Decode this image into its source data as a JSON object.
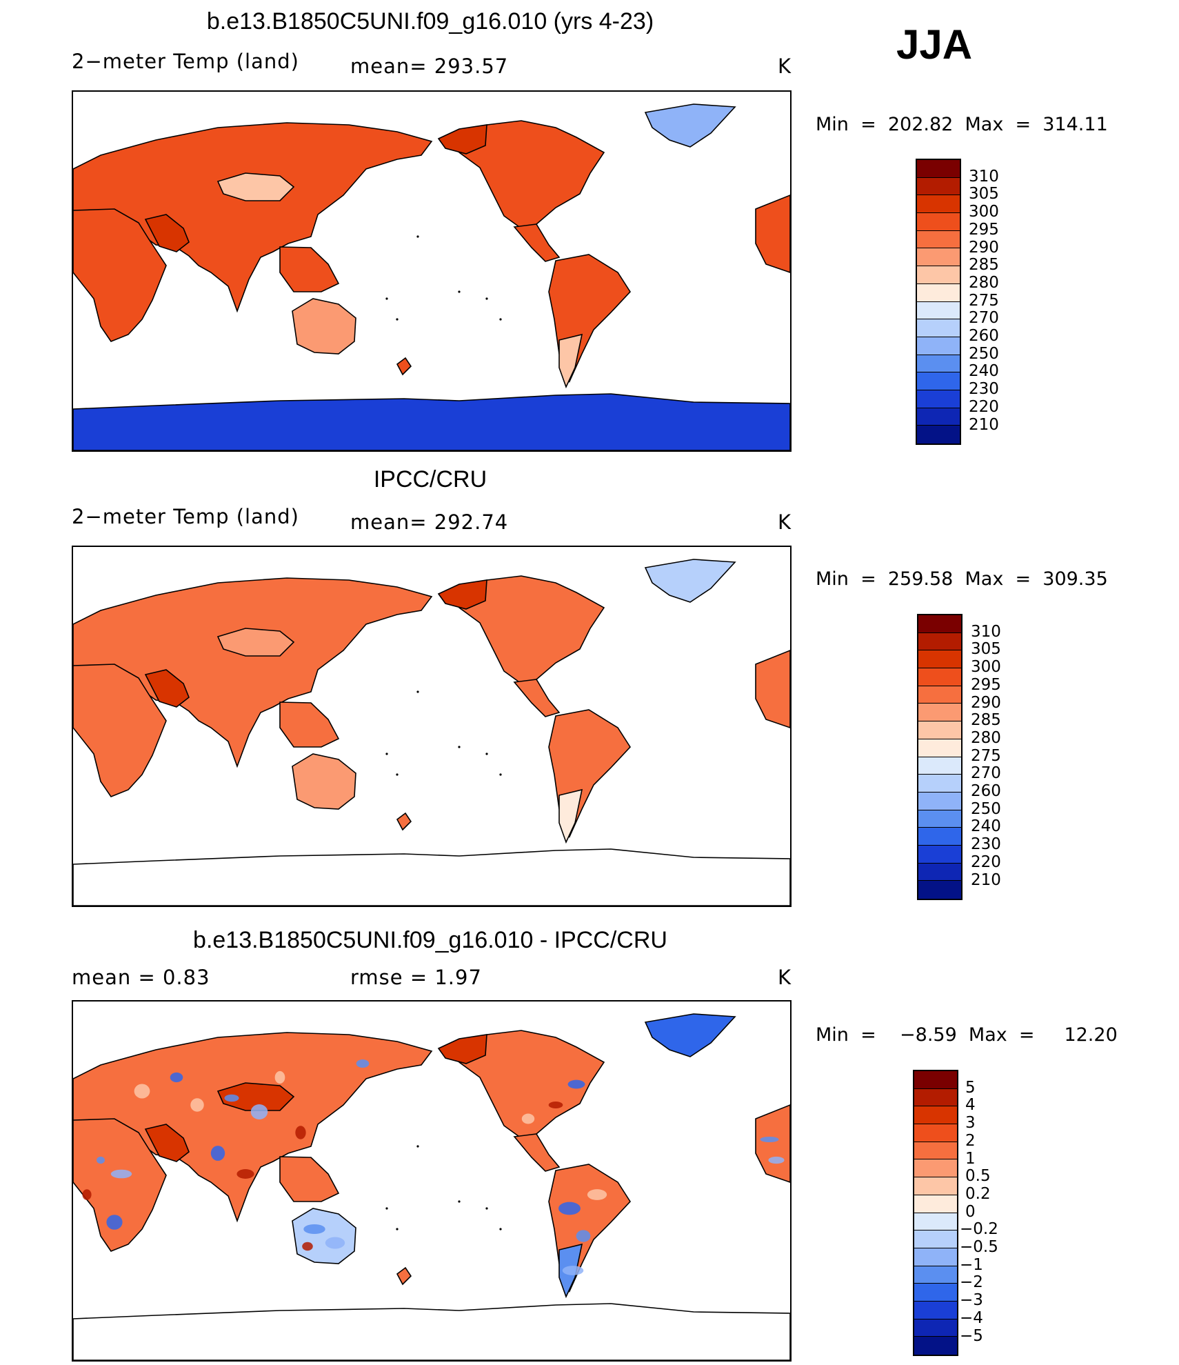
{
  "season": "JJA",
  "panels": [
    {
      "title": "b.e13.B1850C5UNI.f09_g16.010 (yrs 4-23)",
      "left_label": "2−meter Temp (land)",
      "center_label": "mean= 293.57",
      "unit": "K",
      "minmax": "Min  =  202.82  Max  =  314.11",
      "colorbar": {
        "labels": [
          "310",
          "305",
          "300",
          "295",
          "290",
          "285",
          "280",
          "275",
          "270",
          "260",
          "250",
          "240",
          "230",
          "220",
          "210"
        ],
        "colors": [
          "#7a0000",
          "#b31c00",
          "#d83400",
          "#ee4f1c",
          "#f66f3f",
          "#fb9a72",
          "#fdc6a7",
          "#feebdc",
          "#dbe9fb",
          "#b6d0fb",
          "#8fb3f8",
          "#5b8ff0",
          "#2f66ea",
          "#1a3fd6",
          "#0e26b4",
          "#031287"
        ]
      },
      "map_style": "model"
    },
    {
      "title": "IPCC/CRU",
      "left_label": "2−meter Temp (land)",
      "center_label": "mean= 292.74",
      "unit": "K",
      "minmax": "Min  =  259.58  Max  =  309.35",
      "colorbar": {
        "labels": [
          "310",
          "305",
          "300",
          "295",
          "290",
          "285",
          "280",
          "275",
          "270",
          "260",
          "250",
          "240",
          "230",
          "220",
          "210"
        ],
        "colors": [
          "#7a0000",
          "#b31c00",
          "#d83400",
          "#ee4f1c",
          "#f66f3f",
          "#fb9a72",
          "#fdc6a7",
          "#feebdc",
          "#dbe9fb",
          "#b6d0fb",
          "#8fb3f8",
          "#5b8ff0",
          "#2f66ea",
          "#1a3fd6",
          "#0e26b4",
          "#031287"
        ]
      },
      "map_style": "obs"
    },
    {
      "title": "b.e13.B1850C5UNI.f09_g16.010 - IPCC/CRU",
      "left_label": "mean =     0.83",
      "center_label": "rmse =     1.97",
      "unit": "K",
      "minmax": "Min  =    −8.59  Max  =     12.20",
      "colorbar": {
        "labels": [
          "5",
          "4",
          "3",
          "2",
          "1",
          "0.5",
          "0.2",
          "0",
          "−0.2",
          "−0.5",
          "−1",
          "−2",
          "−3",
          "−4",
          "−5"
        ],
        "colors": [
          "#7a0000",
          "#b31c00",
          "#d83400",
          "#ee4f1c",
          "#f66f3f",
          "#fb9a72",
          "#fdc6a7",
          "#feebdc",
          "#dbe9fb",
          "#b6d0fb",
          "#8fb3f8",
          "#5b8ff0",
          "#2f66ea",
          "#1a3fd6",
          "#0e26b4",
          "#031287"
        ]
      },
      "map_style": "diff"
    }
  ]
}
